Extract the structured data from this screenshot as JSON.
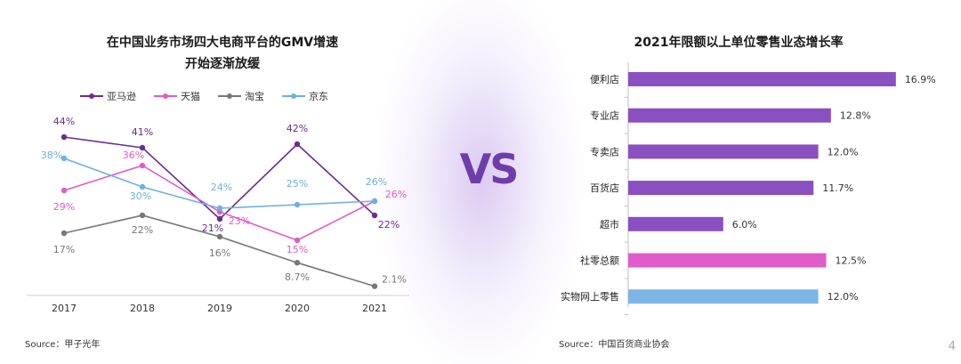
{
  "left_panel": {
    "title_line1": "在中国业务市场四大电商平台的GMV增速",
    "title_line2": "开始逐渐放缓",
    "source": "Source：甲子光年"
  },
  "right_panel": {
    "title": "2021年限额以上单位零售业态增长率",
    "source": "Source：中国百货商业协会"
  },
  "vs_text": "VS",
  "page_number": "4",
  "colors": {
    "amazon": "#6b2d91",
    "tmall": "#e05cc8",
    "taobao": "#777777",
    "jd": "#6fb0e0",
    "bar_purple": "#8a4fc0",
    "bar_pink": "#e05cc8",
    "bar_blue": "#7db5e6"
  },
  "chart_data": [
    {
      "type": "line",
      "categories": [
        "2017",
        "2018",
        "2019",
        "2020",
        "2021"
      ],
      "ylim": [
        0,
        48
      ],
      "legend_position": "top",
      "grid": false,
      "series": [
        {
          "name": "亚马逊",
          "key": "amazon",
          "values": [
            44,
            41,
            21,
            42,
            22
          ],
          "labels": [
            "44%",
            "41%",
            "21%",
            "42%",
            "22%"
          ]
        },
        {
          "name": "天猫",
          "key": "tmall",
          "values": [
            29,
            36,
            23,
            15,
            26
          ],
          "labels": [
            "29%",
            "36%",
            "23%",
            "15%",
            "26%"
          ]
        },
        {
          "name": "淘宝",
          "key": "taobao",
          "values": [
            17,
            22,
            16,
            8.7,
            2.1
          ],
          "labels": [
            "17%",
            "22%",
            "16%",
            "8.7%",
            "2.1%"
          ]
        },
        {
          "name": "京东",
          "key": "jd",
          "values": [
            38,
            30,
            24,
            25,
            26
          ],
          "labels": [
            "38%",
            "30%",
            "24%",
            "25%",
            "26%"
          ]
        }
      ]
    },
    {
      "type": "bar",
      "orientation": "horizontal",
      "categories": [
        "便利店",
        "专业店",
        "专卖店",
        "百货店",
        "超市",
        "社零总额",
        "实物网上零售"
      ],
      "values": [
        16.9,
        12.8,
        12.0,
        11.7,
        6.0,
        12.5,
        12.0
      ],
      "labels": [
        "16.9%",
        "12.8%",
        "12.0%",
        "11.7%",
        "6.0%",
        "12.5%",
        "12.0%"
      ],
      "color_keys": [
        "bar_purple",
        "bar_purple",
        "bar_purple",
        "bar_purple",
        "bar_purple",
        "bar_pink",
        "bar_blue"
      ],
      "xlim": [
        0,
        20
      ]
    }
  ]
}
